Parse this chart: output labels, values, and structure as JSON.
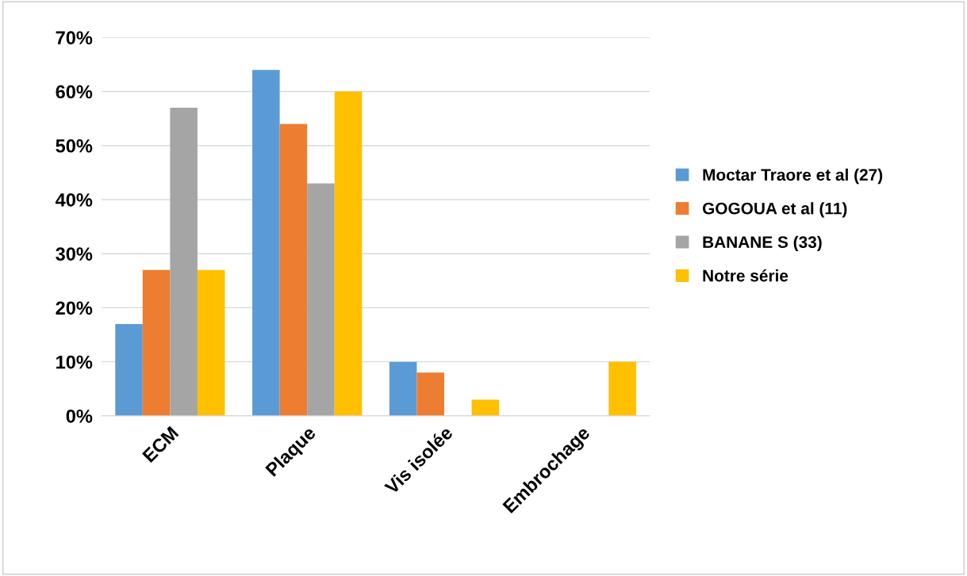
{
  "chart_data": {
    "type": "bar",
    "categories": [
      "ECM",
      "Plaque",
      "Vis isolée",
      "Embrochage"
    ],
    "series": [
      {
        "name": "Moctar Traore et al (27)",
        "color": "#5b9bd5",
        "values": [
          17,
          64,
          10,
          0
        ]
      },
      {
        "name": "GOGOUA et al (11)",
        "color": "#ed7d31",
        "values": [
          27,
          54,
          8,
          0
        ]
      },
      {
        "name": "BANANE S (33)",
        "color": "#a5a5a5",
        "values": [
          57,
          43,
          0,
          0
        ]
      },
      {
        "name": "Notre série",
        "color": "#ffc000",
        "values": [
          27,
          60,
          3,
          10
        ]
      }
    ],
    "ylim": [
      0,
      70
    ],
    "yticks": [
      {
        "value": 0,
        "label": "0%"
      },
      {
        "value": 10,
        "label": "10%"
      },
      {
        "value": 20,
        "label": "20%"
      },
      {
        "value": 30,
        "label": "30%"
      },
      {
        "value": 40,
        "label": "40%"
      },
      {
        "value": 50,
        "label": "50%"
      },
      {
        "value": 60,
        "label": "60%"
      },
      {
        "value": 70,
        "label": "70%"
      }
    ],
    "grid": "y",
    "legend": "right"
  }
}
